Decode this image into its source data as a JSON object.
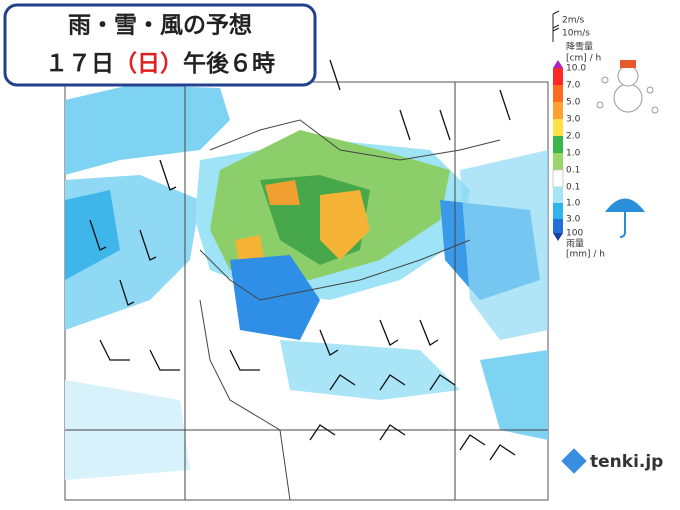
{
  "header": {
    "title": "雨・雪・風の予想",
    "time_prefix": "１７日",
    "time_day": "（日）",
    "time_suffix": "午後６時"
  },
  "legend": {
    "wind_small": "2m/s",
    "wind_large": "10m/s",
    "snow_title": "降雪量",
    "snow_unit": "[cm] / h",
    "snow_levels": [
      "10.0",
      "7.0",
      "5.0",
      "3.0",
      "2.0",
      "1.0",
      "0.1"
    ],
    "rain_levels": [
      "0.1",
      "1.0",
      "3.0",
      "100"
    ],
    "rain_title": "雨量",
    "rain_unit": "[mm] / h"
  },
  "brand": "tenki.jp"
}
